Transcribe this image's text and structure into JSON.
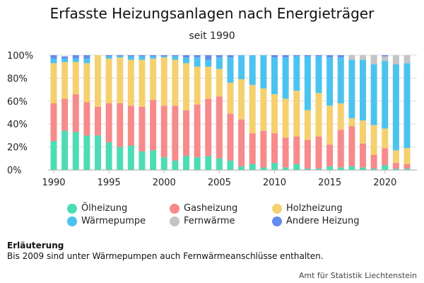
{
  "colors": {
    "oel": "#4ddcb4",
    "gas": "#f78a8a",
    "holz": "#f5d06e",
    "waerme": "#4cc3ef",
    "fern": "#c4c4c4",
    "andere": "#648cee",
    "grid": "#dddddd",
    "axis": "#bbbbbb"
  },
  "note": {
    "title": "Erläuterung",
    "text": "Bis 2009 sind unter Wärmepumpen auch Fernwärmeanschlüsse enthalten."
  },
  "source": "Amt für Statistik Liechtenstein",
  "chart_data": {
    "type": "bar",
    "stacked": true,
    "title": "Erfasste Heizungsanlagen nach Energieträger",
    "subtitle": "seit 1990",
    "xlabel": "",
    "ylabel": "",
    "ylim": [
      0,
      100
    ],
    "y_ticks": [
      "0%",
      "20%",
      "40%",
      "60%",
      "80%",
      "100%"
    ],
    "x_tick_labels": [
      "1990",
      "1995",
      "2000",
      "2005",
      "2010",
      "2015",
      "2020"
    ],
    "grid": true,
    "legend_position": "bottom",
    "categories": [
      1990,
      1991,
      1992,
      1993,
      1994,
      1995,
      1996,
      1997,
      1998,
      1999,
      2000,
      2001,
      2002,
      2003,
      2004,
      2005,
      2006,
      2007,
      2008,
      2009,
      2010,
      2011,
      2012,
      2013,
      2014,
      2015,
      2016,
      2017,
      2018,
      2019,
      2020,
      2021,
      2022
    ],
    "series": [
      {
        "name": "Ölheizung",
        "color_key": "oel",
        "values": [
          25,
          34,
          33,
          30,
          30,
          24,
          20,
          21,
          16,
          17,
          11,
          8,
          12,
          11,
          12,
          10,
          8,
          3,
          5,
          2,
          6,
          2,
          5,
          1,
          1,
          3,
          2,
          3,
          2,
          1,
          4,
          1,
          1
        ]
      },
      {
        "name": "Gasheizung",
        "color_key": "gas",
        "values": [
          33,
          28,
          33,
          29,
          25,
          34,
          38,
          35,
          39,
          44,
          45,
          48,
          40,
          46,
          50,
          54,
          41,
          41,
          27,
          32,
          26,
          26,
          24,
          25,
          28,
          19,
          33,
          35,
          21,
          12,
          15,
          5,
          4
        ]
      },
      {
        "name": "Holzheizung",
        "color_key": "holz",
        "values": [
          35,
          32,
          28,
          34,
          45,
          39,
          40,
          40,
          41,
          36,
          42,
          40,
          41,
          33,
          28,
          24,
          27,
          35,
          42,
          37,
          34,
          34,
          40,
          26,
          38,
          34,
          23,
          7,
          20,
          26,
          17,
          11,
          14
        ]
      },
      {
        "name": "Wärmepumpe",
        "color_key": "waerme",
        "values": [
          4,
          3,
          3,
          4,
          0,
          2,
          1,
          3,
          3,
          2,
          1,
          3,
          5,
          8,
          6,
          10,
          22,
          21,
          26,
          29,
          32,
          36,
          30,
          47,
          32,
          42,
          40,
          51,
          53,
          53,
          59,
          75,
          74
        ]
      },
      {
        "name": "Fernwärme",
        "color_key": "fern",
        "values": [
          0,
          0,
          0,
          0,
          0,
          0,
          0,
          0,
          0,
          0,
          0,
          0,
          0,
          0,
          0,
          0,
          0,
          0,
          0,
          0,
          0,
          0,
          0,
          0,
          0,
          0,
          0,
          4,
          4,
          8,
          4,
          8,
          7
        ]
      },
      {
        "name": "Andere Heizung",
        "color_key": "andere",
        "values": [
          3,
          2,
          3,
          3,
          0,
          1,
          1,
          1,
          1,
          1,
          1,
          1,
          2,
          2,
          4,
          2,
          2,
          0,
          0,
          0,
          2,
          2,
          1,
          1,
          1,
          2,
          2,
          0,
          0,
          0,
          1,
          0,
          0
        ]
      }
    ]
  }
}
